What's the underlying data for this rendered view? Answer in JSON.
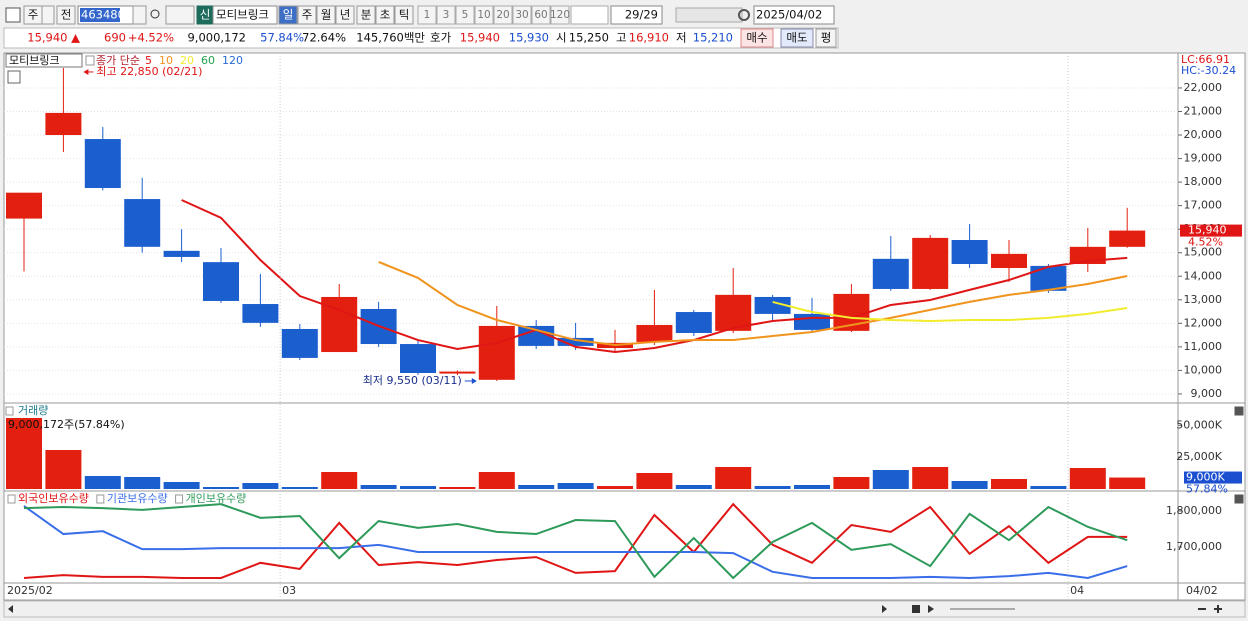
{
  "toolbar": {
    "market": "주",
    "prev": "전",
    "code": "463480",
    "badge": "신",
    "name": "모티브링크",
    "periods": [
      "일",
      "주",
      "월",
      "년",
      "분",
      "초",
      "틱"
    ],
    "intervals": [
      "1",
      "3",
      "5",
      "10",
      "20",
      "30",
      "60",
      "120"
    ],
    "count": "29/29",
    "date": "2025/04/02"
  },
  "quote": {
    "price": "15,940 ▲",
    "change": "690",
    "change_pct": "+4.52%",
    "volume": "9,000,172",
    "volume_ratio": "57.84%",
    "turnover": "72.64%",
    "amount": "145,760백만",
    "bid_ask_label": "호가",
    "ask": "15,940",
    "bid": "15,930",
    "open_label": "시",
    "open": "15,250",
    "high_label": "고",
    "high": "16,910",
    "low_label": "저",
    "low": "15,210",
    "buy": "매수",
    "sell": "매도",
    "avg": "평"
  },
  "chart_data": [
    {
      "type": "candlestick",
      "title": "모티브링크",
      "ma_label": "종가 단순",
      "indicators": [
        "LC:66.91",
        "HC:-30.24"
      ],
      "annotations": {
        "high": "최고 22,850 (02/21)",
        "low": "최저 9,550 (03/11)"
      },
      "categories": [
        "2025/02",
        null,
        null,
        null,
        null,
        null,
        null,
        "03",
        null,
        null,
        null,
        null,
        null,
        null,
        null,
        null,
        null,
        null,
        null,
        null,
        null,
        null,
        null,
        null,
        null,
        null,
        null,
        "04",
        null
      ],
      "last_date": "04/02",
      "open": [
        16450,
        20000,
        19830,
        17280,
        15080,
        14600,
        12820,
        11760,
        10780,
        12610,
        11120,
        9900,
        9600,
        11890,
        11380,
        10950,
        11210,
        12480,
        11680,
        13120,
        12400,
        11680,
        14740,
        13460,
        15540,
        14350,
        14440,
        14520,
        15250
      ],
      "high": [
        17550,
        22850,
        20340,
        18180,
        16000,
        15200,
        14100,
        11970,
        13670,
        12910,
        11290,
        10000,
        12740,
        12140,
        12020,
        11720,
        13420,
        12570,
        14350,
        13210,
        13080,
        13670,
        15710,
        15750,
        16220,
        15540,
        14520,
        16050,
        16910
      ],
      "low": [
        14200,
        19280,
        17650,
        15000,
        14600,
        12870,
        11850,
        10440,
        10780,
        11000,
        9810,
        9800,
        9550,
        10910,
        10870,
        10780,
        11080,
        11460,
        11590,
        12060,
        11630,
        11630,
        13380,
        13420,
        14350,
        13760,
        13290,
        14180,
        15210
      ],
      "close": [
        17550,
        20940,
        17750,
        15250,
        14820,
        12950,
        12020,
        10530,
        13120,
        11120,
        9890,
        9950,
        11890,
        11040,
        11040,
        11170,
        11930,
        11590,
        13210,
        12400,
        11720,
        13250,
        13460,
        15630,
        14520,
        14950,
        13380,
        15250,
        15940
      ],
      "close_label": "15,940",
      "change_label": "4.52%",
      "up_color": "#e3200f",
      "down_color": "#1b5fcf",
      "series": [
        {
          "name": "5",
          "color": "#e01515",
          "values": [
            null,
            null,
            null,
            null,
            17240,
            16480,
            14690,
            13160,
            12570,
            11890,
            11290,
            10910,
            11170,
            11720,
            11000,
            10780,
            10950,
            11290,
            11800,
            12100,
            12230,
            12230,
            12780,
            12990,
            13420,
            13840,
            14400,
            14650,
            14780
          ]
        },
        {
          "name": "10",
          "color": "#f0941e",
          "values": [
            null,
            null,
            null,
            null,
            null,
            null,
            null,
            null,
            null,
            14610,
            13930,
            12780,
            12140,
            11720,
            11290,
            11080,
            11210,
            11290,
            11290,
            11460,
            11630,
            11930,
            12230,
            12570,
            12910,
            13210,
            13420,
            13670,
            14010
          ]
        },
        {
          "name": "20",
          "color": "#f2ec2e",
          "values": [
            null,
            null,
            null,
            null,
            null,
            null,
            null,
            null,
            null,
            null,
            null,
            null,
            null,
            null,
            null,
            null,
            null,
            null,
            null,
            12910,
            12480,
            12230,
            12140,
            12100,
            12140,
            12140,
            12230,
            12400,
            12650
          ]
        },
        {
          "name": "60",
          "color": "#22a04a",
          "values": [
            null,
            null,
            null,
            null,
            null,
            null,
            null,
            null,
            null,
            null,
            null,
            null,
            null,
            null,
            null,
            null,
            null,
            null,
            null,
            null,
            null,
            null,
            null,
            null,
            null,
            null,
            null,
            null,
            null
          ]
        },
        {
          "name": "120",
          "color": "#2a6ad8",
          "values": [
            null,
            null,
            null,
            null,
            null,
            null,
            null,
            null,
            null,
            null,
            null,
            null,
            null,
            null,
            null,
            null,
            null,
            null,
            null,
            null,
            null,
            null,
            null,
            null,
            null,
            null,
            null,
            null,
            null
          ]
        }
      ],
      "ylim": [
        8700,
        23400
      ],
      "yticks": [
        {
          "value": 9000,
          "label": "9,000"
        },
        {
          "value": 10000,
          "label": "10,000"
        },
        {
          "value": 11000,
          "label": "11,000"
        },
        {
          "value": 12000,
          "label": "12,000"
        },
        {
          "value": 13000,
          "label": "13,000"
        },
        {
          "value": 14000,
          "label": "14,000"
        },
        {
          "value": 15000,
          "label": "15,000"
        },
        {
          "value": 16000,
          "label": "16,000"
        },
        {
          "value": 17000,
          "label": "17,000"
        },
        {
          "value": 18000,
          "label": "18,000"
        },
        {
          "value": 19000,
          "label": "19,000"
        },
        {
          "value": 20000,
          "label": "20,000"
        },
        {
          "value": 21000,
          "label": "21,000"
        },
        {
          "value": 22000,
          "label": "22,000"
        }
      ],
      "grid": true
    },
    {
      "type": "bar",
      "title": "거래량",
      "subtitle": "9,000,172주(57.84%)",
      "values": [
        55790,
        30640,
        10210,
        9430,
        5500,
        1570,
        4710,
        1570,
        13360,
        3140,
        2360,
        1570,
        13360,
        3140,
        4710,
        2360,
        12570,
        3140,
        17290,
        2360,
        3140,
        9430,
        14930,
        17290,
        6290,
        7860,
        2360,
        16500,
        9000
      ],
      "last_label": "9,000K",
      "last_pct": "57.84%",
      "ylim": [
        0,
        66000
      ],
      "yticks": [
        {
          "value": 25000,
          "label": "25,000K"
        },
        {
          "value": 50000,
          "label": "50,000K"
        }
      ]
    },
    {
      "type": "line",
      "series": [
        {
          "name": "외국인보유수량",
          "color": "#e01515",
          "values": [
            1614000,
            1622000,
            1617000,
            1617000,
            1614000,
            1614000,
            1656000,
            1639000,
            1767000,
            1650000,
            1658000,
            1650000,
            1664000,
            1672000,
            1628000,
            1633000,
            1789000,
            1686000,
            1819000,
            1706000,
            1656000,
            1761000,
            1742000,
            1811000,
            1681000,
            1758000,
            1656000,
            1728000,
            1728000
          ]
        },
        {
          "name": "기관보유수량",
          "color": "#3a6ee8",
          "values": [
            1814000,
            1736000,
            1744000,
            1694000,
            1694000,
            1697000,
            1697000,
            1697000,
            1697000,
            1706000,
            1686000,
            1686000,
            1686000,
            1686000,
            1686000,
            1686000,
            1686000,
            1686000,
            1683000,
            1631000,
            1614000,
            1614000,
            1614000,
            1617000,
            1614000,
            1619000,
            1628000,
            1614000,
            1647000
          ]
        },
        {
          "name": "개인보유수량",
          "color": "#2e9a5a",
          "values": [
            1808000,
            1811000,
            1808000,
            1803000,
            1811000,
            1819000,
            1781000,
            1786000,
            1669000,
            1772000,
            1753000,
            1764000,
            1742000,
            1736000,
            1775000,
            1772000,
            1617000,
            1725000,
            1614000,
            1714000,
            1767000,
            1692000,
            1708000,
            1647000,
            1792000,
            1719000,
            1811000,
            1756000,
            1719000
          ]
        }
      ],
      "ylim": [
        1600000,
        1850000
      ],
      "yticks": [
        {
          "value": 1800000,
          "label": "1,800,000"
        },
        {
          "value": 1700000,
          "label": "1,700,000"
        }
      ]
    }
  ]
}
